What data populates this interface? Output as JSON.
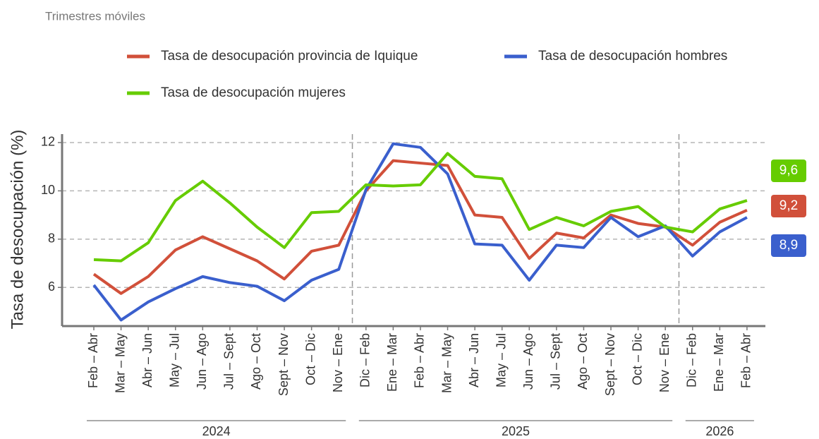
{
  "chart_data": {
    "type": "line",
    "subtitle": "Trimestres móviles",
    "y_label": "Tasa de desocupación (%)",
    "groups": [
      {
        "label": "2024",
        "categories": [
          "Feb – Abr",
          "Mar – May",
          "Abr – Jun",
          "May – Jul",
          "Jun – Ago",
          "Jul – Sept",
          "Ago – Oct",
          "Sept – Nov",
          "Oct – Dic",
          "Nov – Ene"
        ]
      },
      {
        "label": "2025",
        "categories": [
          "Dic – Feb",
          "Ene – Mar",
          "Feb – Abr",
          "Mar – May",
          "Abr – Jun",
          "May – Jul",
          "Jun – Ago",
          "Jul – Sept",
          "Ago – Oct",
          "Sept – Nov",
          "Oct – Dic",
          "Nov – Ene"
        ]
      },
      {
        "label": "2026",
        "categories": [
          "Dic – Feb",
          "Ene – Mar",
          "Feb – Abr"
        ]
      }
    ],
    "series": [
      {
        "name": "Tasa de desocupación provincia de Iquique",
        "color": "#d1503a",
        "values": [
          6.55,
          5.75,
          6.45,
          7.55,
          8.1,
          7.6,
          7.1,
          6.35,
          7.5,
          7.75,
          10.0,
          11.25,
          11.15,
          11.05,
          9.0,
          8.9,
          7.2,
          8.25,
          8.05,
          9.0,
          8.65,
          8.5,
          7.75,
          8.7,
          9.2
        ],
        "value_labels": [
          null,
          null,
          null,
          null,
          null,
          null,
          null,
          null,
          null,
          null,
          null,
          null,
          null,
          null,
          null,
          null,
          null,
          null,
          null,
          null,
          null,
          null,
          null,
          null,
          "9,2"
        ]
      },
      {
        "name": "Tasa de desocupación hombres",
        "color": "#3a5fcd",
        "values": [
          6.1,
          4.65,
          5.4,
          5.95,
          6.45,
          6.2,
          6.05,
          5.45,
          6.3,
          6.75,
          10.05,
          11.95,
          11.8,
          10.7,
          7.8,
          7.75,
          6.3,
          7.75,
          7.65,
          8.9,
          8.1,
          8.55,
          7.3,
          8.3,
          8.9
        ],
        "value_labels": [
          null,
          null,
          null,
          null,
          null,
          null,
          null,
          null,
          null,
          null,
          null,
          null,
          null,
          null,
          null,
          null,
          null,
          null,
          null,
          null,
          null,
          null,
          null,
          null,
          "8,9"
        ]
      },
      {
        "name": "Tasa de desocupación mujeres",
        "color": "#66cc00",
        "values": [
          7.15,
          7.1,
          7.85,
          9.6,
          10.4,
          9.5,
          8.5,
          7.65,
          9.1,
          9.15,
          10.25,
          10.2,
          10.25,
          11.55,
          10.6,
          10.5,
          8.4,
          8.9,
          8.55,
          9.15,
          9.35,
          8.5,
          8.3,
          9.25,
          9.6
        ],
        "value_labels": [
          null,
          null,
          null,
          null,
          null,
          null,
          null,
          null,
          null,
          null,
          null,
          null,
          null,
          null,
          null,
          null,
          null,
          null,
          null,
          null,
          null,
          null,
          null,
          null,
          "9,6"
        ]
      }
    ],
    "ylim": [
      4.4,
      12.35
    ],
    "yticks": [
      6,
      8,
      10,
      12
    ],
    "grid": true
  }
}
